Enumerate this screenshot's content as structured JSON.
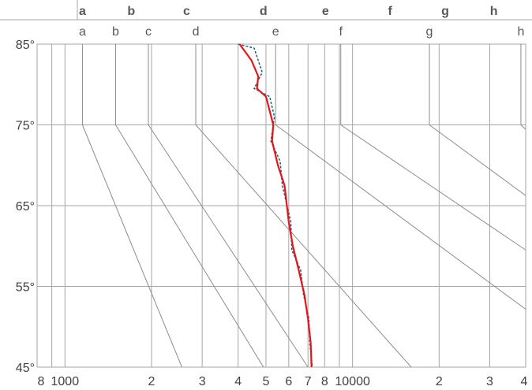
{
  "colors": {
    "background": "#ffffff",
    "grid": "#a6a6a6",
    "diagonal": "#8c8c8c",
    "header_text": "#595959",
    "axis_text": "#404040",
    "series_red": "#e8141b",
    "series_dashed": "#1f5f7a"
  },
  "chart_data": {
    "type": "line",
    "title": "",
    "x_axis": {
      "scale": "log",
      "range": [
        800,
        40000
      ],
      "tick_values": [
        800,
        1000,
        2000,
        3000,
        4000,
        5000,
        6000,
        7000,
        8000,
        10000,
        20000,
        30000,
        40000
      ],
      "tick_labels": [
        "8",
        "1000",
        "2",
        "3",
        "4",
        "5",
        "6",
        "7",
        "8",
        "10000",
        "2",
        "3",
        "4"
      ]
    },
    "y_axis": {
      "range": [
        45,
        85
      ],
      "tick_values": [
        45,
        55,
        65,
        75,
        85
      ],
      "tick_labels": [
        "45°",
        "55°",
        "65°",
        "75°",
        "85°"
      ]
    },
    "grid": true,
    "header_row_1": {
      "labels": [
        "a",
        "b",
        "c",
        "d",
        "e",
        "f",
        "g",
        "h"
      ],
      "x": [
        1150,
        1700,
        2650,
        4900,
        8050,
        13500,
        21000,
        31000
      ]
    },
    "header_row_2": {
      "labels": [
        "a",
        "b",
        "c",
        "d",
        "e",
        "f",
        "g",
        "h"
      ],
      "x": [
        1150,
        1500,
        1950,
        2850,
        5400,
        9100,
        18500,
        38500
      ]
    },
    "reference_lines": [
      {
        "label": "a",
        "x75": 1150,
        "x45": 2550
      },
      {
        "label": "b",
        "x75": 1500,
        "x45": 4900
      },
      {
        "label": "c",
        "x75": 1950,
        "x45": 7000
      },
      {
        "label": "d",
        "x75": 2850,
        "x45": 16000
      },
      {
        "label": "e",
        "x75": 5400,
        "x45": 75000
      },
      {
        "label": "f",
        "x75": 9100,
        "x45": 160000
      },
      {
        "label": "g",
        "x75": 18500,
        "x45": 260000
      },
      {
        "label": "h",
        "x75": 38500,
        "x45": 310000
      }
    ],
    "series": [
      {
        "style": "solid",
        "x": [
          4050,
          4450,
          4700,
          4650,
          5000,
          5300,
          5250,
          5500,
          5800,
          6000,
          6200,
          6500,
          6800,
          7000,
          7150,
          7200
        ],
        "y": [
          85,
          83,
          81,
          79.5,
          78.5,
          75,
          73,
          70,
          67.5,
          63,
          60,
          57,
          54,
          51,
          48,
          45
        ]
      },
      {
        "style": "dashed",
        "x": [
          4000,
          4550,
          4850,
          4550,
          5150,
          5350,
          5200,
          5600,
          5700,
          6100,
          6150,
          6600,
          6750,
          7050,
          7100,
          7250
        ],
        "y": [
          85,
          84.5,
          81.5,
          79.5,
          78.5,
          76,
          73,
          70.5,
          67.5,
          63,
          59.5,
          57,
          54,
          51,
          48,
          45
        ]
      }
    ]
  }
}
